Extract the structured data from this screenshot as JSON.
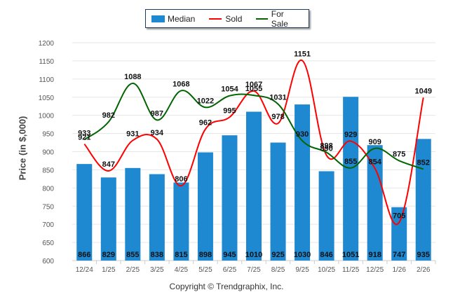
{
  "chart_data": {
    "type": "bar+line",
    "title": "",
    "xlabel": "",
    "ylabel": "Price (in $,000)",
    "ylim": [
      600,
      1200
    ],
    "yticks": [
      600,
      650,
      700,
      750,
      800,
      850,
      900,
      950,
      1000,
      1050,
      1100,
      1150,
      1200
    ],
    "grid": true,
    "legend_position": "top-center",
    "categories": [
      "12/24",
      "1/25",
      "2/25",
      "3/25",
      "4/25",
      "5/25",
      "6/25",
      "7/25",
      "8/25",
      "9/25",
      "10/25",
      "11/25",
      "12/25",
      "1/26",
      "2/26"
    ],
    "series": [
      {
        "name": "Median",
        "kind": "bar",
        "color": "#1e88d0",
        "values": [
          866,
          829,
          855,
          838,
          815,
          898,
          945,
          1010,
          925,
          1030,
          846,
          1051,
          918,
          747,
          935
        ]
      },
      {
        "name": "Sold",
        "kind": "line",
        "color": "#ff0000",
        "values": [
          921,
          847,
          931,
          934,
          806,
          962,
          995,
          1067,
          978,
          1151,
          890,
          929,
          854,
          705,
          1049
        ]
      },
      {
        "name": "For Sale",
        "kind": "line",
        "color": "#006400",
        "values": [
          933,
          982,
          1088,
          987,
          1068,
          1022,
          1054,
          1055,
          1031,
          930,
          898,
          855,
          909,
          875,
          852
        ]
      }
    ]
  },
  "legend": {
    "median_label": "Median",
    "sold_label": "Sold",
    "forsale_label": "For Sale"
  },
  "footer": {
    "copyright": "Copyright © Trendgraphix, Inc."
  }
}
